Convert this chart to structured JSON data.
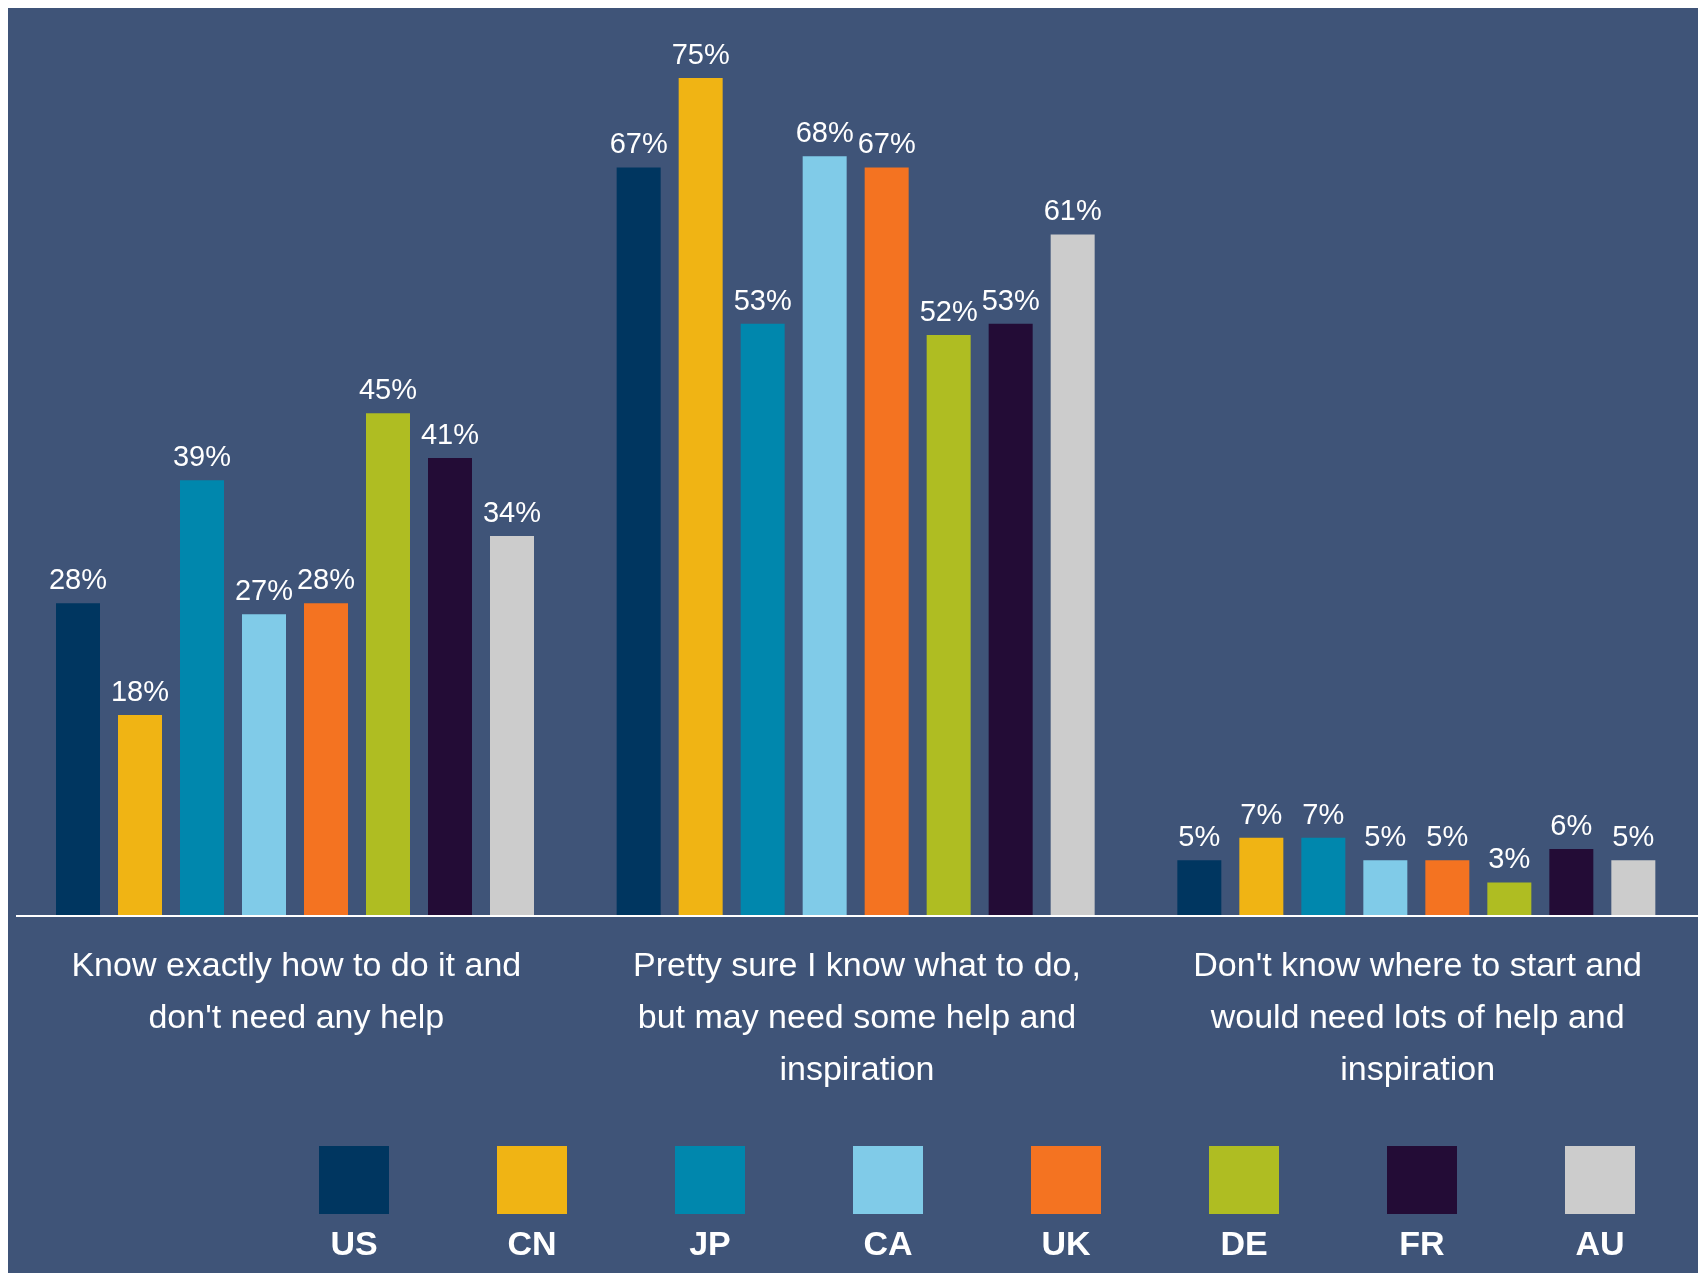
{
  "chart_data": {
    "type": "bar",
    "categories": [
      "Know exactly how to do it and don't need any help",
      "Pretty sure I know what to do, but may need some help and inspiration",
      "Don't know where to start and would need lots of help and inspiration"
    ],
    "series": [
      {
        "name": "US",
        "color": "#003660",
        "values": [
          28,
          67,
          5
        ],
        "value_labels": [
          "28%",
          "67%",
          "5%"
        ]
      },
      {
        "name": "CN",
        "color": "#f0b414",
        "values": [
          18,
          75,
          7
        ],
        "value_labels": [
          "18%",
          "75%",
          "7%"
        ]
      },
      {
        "name": "JP",
        "color": "#0087ad",
        "values": [
          39,
          53,
          7
        ],
        "value_labels": [
          "39%",
          "53%",
          "7%"
        ]
      },
      {
        "name": "CA",
        "color": "#80cbe8",
        "values": [
          27,
          68,
          5
        ],
        "value_labels": [
          "27%",
          "68%",
          "5%"
        ]
      },
      {
        "name": "UK",
        "color": "#f47321",
        "values": [
          28,
          67,
          5
        ],
        "value_labels": [
          "28%",
          "67%",
          "5%"
        ]
      },
      {
        "name": "DE",
        "color": "#afbd22",
        "values": [
          45,
          52,
          3
        ],
        "value_labels": [
          "45%",
          "52%",
          "3%"
        ]
      },
      {
        "name": "FR",
        "color": "#230c36",
        "values": [
          41,
          53,
          6
        ],
        "value_labels": [
          "41%",
          "53%",
          "6%"
        ]
      },
      {
        "name": "AU",
        "color": "#cccccc",
        "values": [
          34,
          61,
          5
        ],
        "value_labels": [
          "34%",
          "61%",
          "5%"
        ]
      }
    ],
    "legend": "bottom",
    "grid": false
  }
}
